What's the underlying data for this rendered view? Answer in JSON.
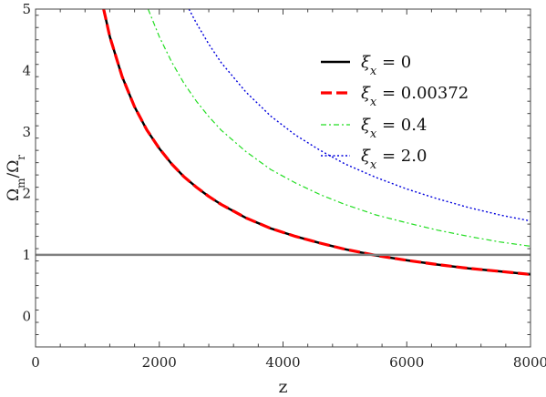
{
  "chart_data": {
    "type": "line",
    "xlabel": "z",
    "ylabel": "Ω_m/Ω_r",
    "xlim": [
      0,
      8000
    ],
    "ylim": [
      -0.5,
      5
    ],
    "x_ticks": [
      0,
      2000,
      4000,
      6000,
      8000
    ],
    "y_ticks": [
      0,
      1,
      2,
      3,
      4,
      5
    ],
    "grid": false,
    "legend_position": "top-right",
    "reference_line": {
      "y": 1,
      "color": "#808080"
    },
    "series": [
      {
        "name": "ξx = 0",
        "legend_var": "ξ",
        "legend_sub": "x",
        "legend_value": " = 0",
        "color": "#000000",
        "style": "solid",
        "x": [
          1100,
          1200,
          1400,
          1600,
          1800,
          2000,
          2200,
          2400,
          2600,
          2800,
          3000,
          3400,
          3800,
          4200,
          4600,
          5000,
          5500,
          6000,
          6500,
          7000,
          7500,
          8000
        ],
        "y": [
          5.0,
          4.55,
          3.9,
          3.41,
          3.03,
          2.73,
          2.48,
          2.27,
          2.1,
          1.95,
          1.82,
          1.6,
          1.43,
          1.3,
          1.19,
          1.09,
          0.99,
          0.91,
          0.84,
          0.78,
          0.73,
          0.68
        ]
      },
      {
        "name": "ξx = 0.00372",
        "legend_var": "ξ",
        "legend_sub": "x",
        "legend_value": " = 0.00372",
        "color": "#ff0000",
        "style": "dashed",
        "x": [
          1100,
          1200,
          1400,
          1600,
          1800,
          2000,
          2200,
          2400,
          2600,
          2800,
          3000,
          3400,
          3800,
          4200,
          4600,
          5000,
          5500,
          6000,
          6500,
          7000,
          7500,
          8000
        ],
        "y": [
          5.0,
          4.55,
          3.9,
          3.41,
          3.03,
          2.73,
          2.48,
          2.27,
          2.1,
          1.95,
          1.82,
          1.6,
          1.43,
          1.3,
          1.19,
          1.09,
          0.99,
          0.91,
          0.84,
          0.78,
          0.73,
          0.68
        ]
      },
      {
        "name": "ξx = 0.4",
        "legend_var": "ξ",
        "legend_sub": "x",
        "legend_value": " = 0.4",
        "color": "#22dd22",
        "style": "dashdot",
        "x": [
          1820,
          2000,
          2200,
          2400,
          2600,
          2800,
          3000,
          3400,
          3800,
          4200,
          4600,
          5000,
          5500,
          6000,
          6500,
          7000,
          7500,
          8000
        ],
        "y": [
          5.0,
          4.55,
          4.14,
          3.79,
          3.5,
          3.25,
          3.03,
          2.68,
          2.39,
          2.17,
          1.98,
          1.82,
          1.65,
          1.52,
          1.4,
          1.3,
          1.21,
          1.14
        ]
      },
      {
        "name": "ξx = 2.0",
        "legend_var": "ξ",
        "legend_sub": "x",
        "legend_value": " = 2.0",
        "color": "#0000dd",
        "style": "dotted",
        "x": [
          2480,
          2600,
          2800,
          3000,
          3400,
          3800,
          4200,
          4600,
          5000,
          5500,
          6000,
          6500,
          7000,
          7500,
          8000
        ],
        "y": [
          5.0,
          4.77,
          4.43,
          4.13,
          3.65,
          3.26,
          2.95,
          2.7,
          2.48,
          2.26,
          2.07,
          1.91,
          1.77,
          1.65,
          1.55
        ]
      }
    ]
  }
}
